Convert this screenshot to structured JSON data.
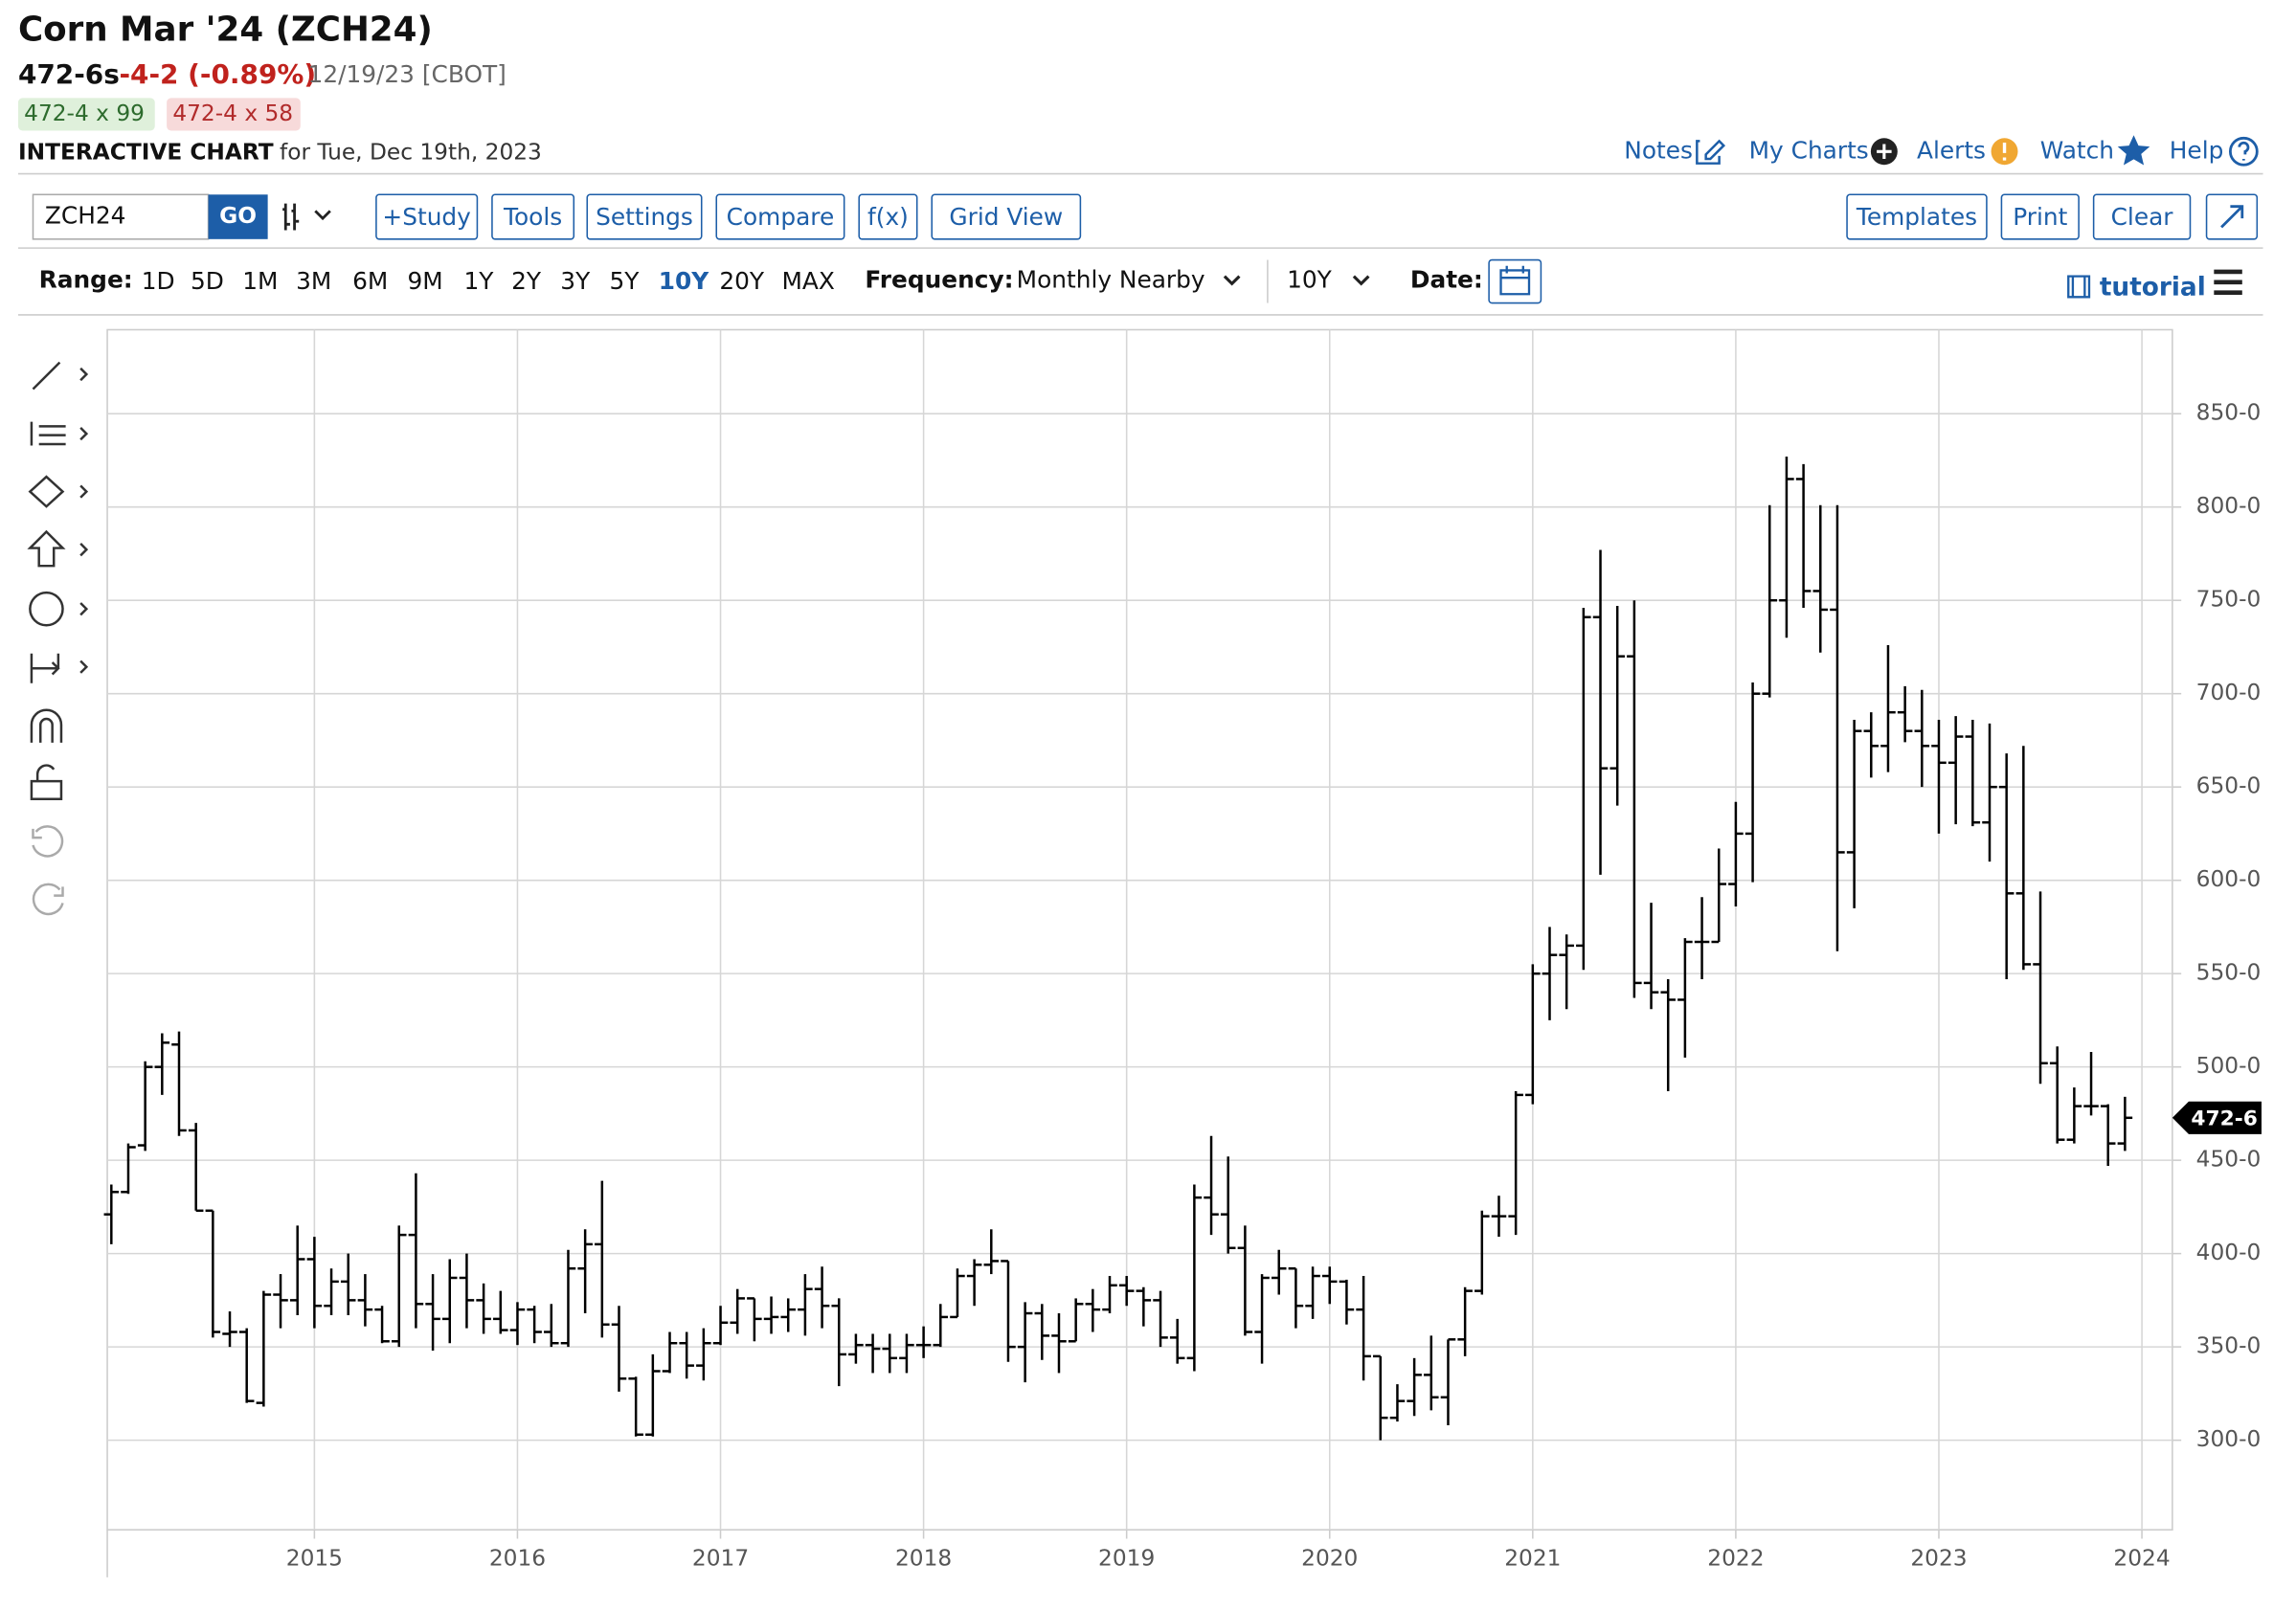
{
  "header": {
    "title": "Corn Mar '24 (ZCH24)",
    "last": "472-6s",
    "change": "-4-2 (-0.89%)",
    "date": "12/19/23 [CBOT]",
    "bid": "472-4 x 99",
    "ask": "472-4 x 58",
    "chart_label": "INTERACTIVE CHART",
    "chart_for": "for Tue, Dec 19th, 2023"
  },
  "links": [
    "Notes",
    "My Charts",
    "Alerts",
    "Watch",
    "Help"
  ],
  "toolbar": {
    "symbol": "ZCH24",
    "go": "GO",
    "buttons": [
      "+Study",
      "Tools",
      "Settings",
      "Compare",
      "f(x)",
      "Grid View"
    ],
    "right_buttons": [
      "Templates",
      "Print",
      "Clear"
    ]
  },
  "range": {
    "label": "Range:",
    "options": [
      "1D",
      "5D",
      "1M",
      "3M",
      "6M",
      "9M",
      "1Y",
      "2Y",
      "3Y",
      "5Y",
      "10Y",
      "20Y",
      "MAX"
    ],
    "active": "10Y",
    "frequency_label": "Frequency:",
    "frequency": "Monthly Nearby",
    "period": "10Y",
    "date_label": "Date:",
    "tutorial": "tutorial"
  },
  "chart_data": {
    "type": "ohlc",
    "color": "#000000",
    "grid": true,
    "open": [
      421,
      433,
      458,
      500,
      512,
      466,
      423,
      357,
      358,
      320,
      378,
      375,
      397,
      372,
      385,
      375,
      370,
      353,
      410,
      373,
      365,
      387,
      375,
      365,
      359,
      370,
      358,
      352,
      392,
      405,
      362,
      333,
      303,
      337,
      352,
      340,
      352,
      363,
      376,
      365,
      366,
      370,
      381,
      372,
      346,
      351,
      349,
      344,
      351,
      351,
      366,
      388,
      394,
      396,
      350,
      368,
      356,
      353,
      373,
      370,
      383,
      380,
      375,
      355,
      344,
      430,
      421,
      403,
      358,
      387,
      392,
      372,
      388,
      385,
      370,
      345,
      312,
      321,
      335,
      323,
      354,
      380,
      420,
      420,
      485,
      550,
      560,
      565,
      741,
      660,
      720,
      545,
      540,
      536,
      567,
      567,
      598,
      625,
      700,
      750,
      815,
      755,
      745,
      615,
      680,
      672,
      690,
      680,
      672,
      663,
      677,
      631,
      650,
      593,
      555,
      502,
      461,
      479,
      479,
      459
    ],
    "high": [
      437,
      459,
      503,
      518,
      519,
      470,
      423,
      369,
      360,
      380,
      389,
      415,
      409,
      392,
      400,
      389,
      372,
      415,
      443,
      389,
      397,
      400,
      384,
      380,
      374,
      372,
      373,
      402,
      413,
      439,
      372,
      334,
      346,
      358,
      358,
      360,
      372,
      381,
      376,
      377,
      376,
      389,
      393,
      376,
      357,
      357,
      357,
      357,
      361,
      373,
      392,
      397,
      413,
      396,
      374,
      373,
      368,
      376,
      381,
      388,
      388,
      382,
      380,
      365,
      437,
      463,
      452,
      415,
      389,
      402,
      392,
      393,
      393,
      386,
      388,
      345,
      330,
      344,
      356,
      354,
      382,
      423,
      431,
      487,
      555,
      575,
      571,
      746,
      777,
      747,
      750,
      588,
      547,
      569,
      591,
      617,
      642,
      706,
      801,
      827,
      823,
      801,
      801,
      686,
      690,
      726,
      704,
      702,
      686,
      688,
      686,
      684,
      668,
      672,
      594,
      511,
      489,
      508,
      480,
      484
    ],
    "low": [
      405,
      432,
      455,
      485,
      463,
      423,
      355,
      350,
      320,
      318,
      360,
      367,
      360,
      367,
      367,
      361,
      352,
      350,
      360,
      348,
      352,
      360,
      357,
      357,
      351,
      352,
      350,
      350,
      368,
      355,
      326,
      302,
      302,
      336,
      333,
      332,
      351,
      357,
      353,
      357,
      358,
      356,
      360,
      329,
      341,
      336,
      336,
      336,
      344,
      350,
      366,
      372,
      389,
      342,
      331,
      343,
      336,
      353,
      358,
      368,
      372,
      361,
      350,
      341,
      337,
      410,
      400,
      356,
      341,
      378,
      360,
      365,
      373,
      362,
      332,
      300,
      310,
      313,
      316,
      308,
      345,
      378,
      409,
      410,
      480,
      525,
      531,
      552,
      603,
      640,
      537,
      531,
      487,
      505,
      547,
      567,
      586,
      599,
      698,
      730,
      746,
      722,
      562,
      585,
      655,
      658,
      674,
      650,
      625,
      630,
      629,
      610,
      547,
      552,
      491,
      459,
      459,
      474,
      447,
      455
    ],
    "close": [
      433,
      457,
      500,
      513,
      466,
      423,
      358,
      358,
      321,
      378,
      375,
      397,
      372,
      385,
      375,
      370,
      353,
      410,
      373,
      365,
      387,
      375,
      365,
      359,
      370,
      358,
      352,
      392,
      405,
      362,
      333,
      303,
      337,
      352,
      340,
      352,
      363,
      376,
      365,
      366,
      370,
      381,
      372,
      346,
      351,
      349,
      344,
      351,
      351,
      366,
      388,
      394,
      396,
      350,
      368,
      356,
      353,
      373,
      370,
      383,
      380,
      375,
      355,
      344,
      430,
      421,
      403,
      358,
      387,
      392,
      372,
      388,
      385,
      370,
      345,
      312,
      321,
      335,
      323,
      354,
      380,
      420,
      420,
      485,
      550,
      560,
      565,
      741,
      660,
      720,
      545,
      540,
      536,
      567,
      567,
      598,
      625,
      700,
      750,
      815,
      755,
      745,
      615,
      680,
      672,
      690,
      680,
      672,
      663,
      677,
      631,
      650,
      593,
      555,
      502,
      461,
      479,
      479,
      459,
      472.75
    ],
    "xticks": [
      2015,
      2016,
      2017,
      2018,
      2019,
      2020,
      2021,
      2022,
      2023,
      2024
    ],
    "xlim": [
      2013.98,
      2024.15
    ],
    "ylim": [
      252,
      895
    ],
    "yticks": [
      {
        "value": 300,
        "label": "300-0"
      },
      {
        "value": 350,
        "label": "350-0"
      },
      {
        "value": 400,
        "label": "400-0"
      },
      {
        "value": 450,
        "label": "450-0"
      },
      {
        "value": 500,
        "label": "500-0"
      },
      {
        "value": 550,
        "label": "550-0"
      },
      {
        "value": 600,
        "label": "600-0"
      },
      {
        "value": 650,
        "label": "650-0"
      },
      {
        "value": 700,
        "label": "700-0"
      },
      {
        "value": 750,
        "label": "750-0"
      },
      {
        "value": 800,
        "label": "800-0"
      },
      {
        "value": 850,
        "label": "850-0"
      }
    ],
    "last_price": {
      "value": 472.75,
      "label": "472-6"
    }
  }
}
